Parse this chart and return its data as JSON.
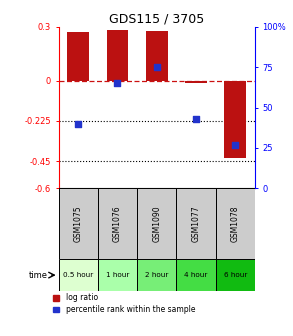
{
  "title": "GDS115 / 3705",
  "samples": [
    "GSM1075",
    "GSM1076",
    "GSM1090",
    "GSM1077",
    "GSM1078"
  ],
  "time_labels": [
    "0.5 hour",
    "1 hour",
    "2 hour",
    "4 hour",
    "6 hour"
  ],
  "time_colors": [
    "#ddffd0",
    "#aaffaa",
    "#77ee77",
    "#44dd44",
    "#11bb11"
  ],
  "log_ratios": [
    0.27,
    0.285,
    0.275,
    -0.012,
    -0.43
  ],
  "percentile_ranks": [
    40,
    65,
    75,
    43,
    27
  ],
  "ylim_left": [
    -0.6,
    0.3
  ],
  "ylim_right": [
    0,
    100
  ],
  "left_ticks": [
    0.3,
    0,
    -0.225,
    -0.45,
    -0.6
  ],
  "right_ticks": [
    100,
    75,
    50,
    25,
    0
  ],
  "dotted_lines": [
    -0.225,
    -0.45
  ],
  "bar_color": "#bb1111",
  "dot_color": "#2233cc",
  "zero_line_color": "#cc1111",
  "background_color": "#ffffff",
  "sample_bg": "#cccccc",
  "figsize": [
    2.93,
    3.36
  ],
  "dpi": 100
}
